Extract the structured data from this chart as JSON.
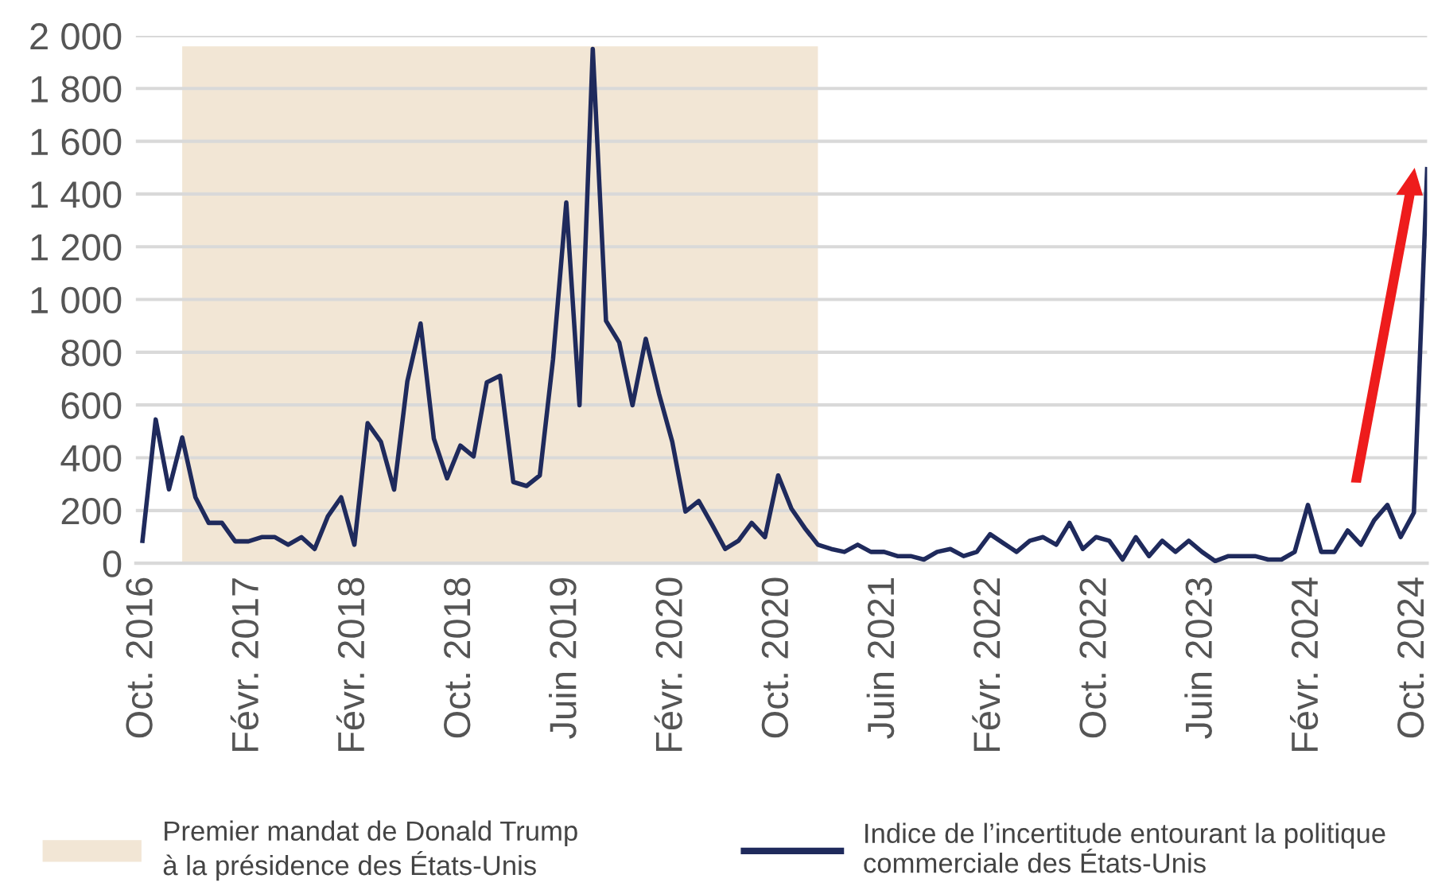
{
  "chart_data": {
    "type": "line",
    "categories": [
      "Oct. 2016",
      null,
      null,
      null,
      null,
      null,
      null,
      null,
      "Févr. 2017",
      null,
      null,
      null,
      null,
      null,
      null,
      null,
      "Févr. 2018",
      null,
      null,
      null,
      null,
      null,
      null,
      null,
      "Oct. 2018",
      null,
      null,
      null,
      null,
      null,
      null,
      null,
      "Juin 2019",
      null,
      null,
      null,
      null,
      null,
      null,
      null,
      "Févr. 2020",
      null,
      null,
      null,
      null,
      null,
      null,
      null,
      "Oct. 2020",
      null,
      null,
      null,
      null,
      null,
      null,
      null,
      "Juin 2021",
      null,
      null,
      null,
      null,
      null,
      null,
      null,
      "Févr. 2022",
      null,
      null,
      null,
      null,
      null,
      null,
      null,
      "Oct. 2022",
      null,
      null,
      null,
      null,
      null,
      null,
      null,
      "Juin 2023",
      null,
      null,
      null,
      null,
      null,
      null,
      null,
      "Févr. 2024",
      null,
      null,
      null,
      null,
      null,
      null,
      null,
      "Oct. 2024",
      null
    ],
    "series": [
      {
        "name": "Indice de l’incertitude entourant la politique\ncommerciale des États-Unis",
        "color": "#1f2a5c",
        "values": [
          85,
          545,
          280,
          477,
          250,
          153,
          153,
          83,
          83,
          99,
          99,
          70,
          99,
          54,
          178,
          250,
          70,
          531,
          461,
          279,
          690,
          909,
          473,
          322,
          446,
          405,
          686,
          711,
          308,
          293,
          333,
          773,
          1368,
          599,
          1950,
          919,
          837,
          599,
          851,
          643,
          461,
          196,
          236,
          147,
          54,
          85,
          153,
          99,
          333,
          207,
          134,
          70,
          54,
          43,
          70,
          43,
          43,
          27,
          27,
          14,
          43,
          54,
          27,
          43,
          110,
          76,
          43,
          85,
          99,
          70,
          153,
          54,
          99,
          85,
          14,
          99,
          27,
          85,
          43,
          85,
          43,
          8,
          27,
          27,
          27,
          14,
          14,
          43,
          221,
          43,
          43,
          124,
          70,
          163,
          221,
          99,
          192,
          1494
        ]
      }
    ],
    "annotations": [
      "Premier mandat de Donald Trump\nà la présidence des États-Unis"
    ],
    "ylim": [
      0,
      2000
    ],
    "yticks": [
      0,
      200,
      400,
      600,
      800,
      {
        "value": 1000,
        "label": "1 000"
      },
      {
        "value": 1200,
        "label": "1 200"
      },
      {
        "value": 1400,
        "label": "1 400"
      },
      {
        "value": 1600,
        "label": "1 600"
      },
      {
        "value": 1800,
        "label": "1 800"
      },
      {
        "value": 2000,
        "label": "2 000"
      }
    ],
    "grid": "y",
    "legend": "bottom",
    "marker": "none",
    "line_style": "solid"
  }
}
